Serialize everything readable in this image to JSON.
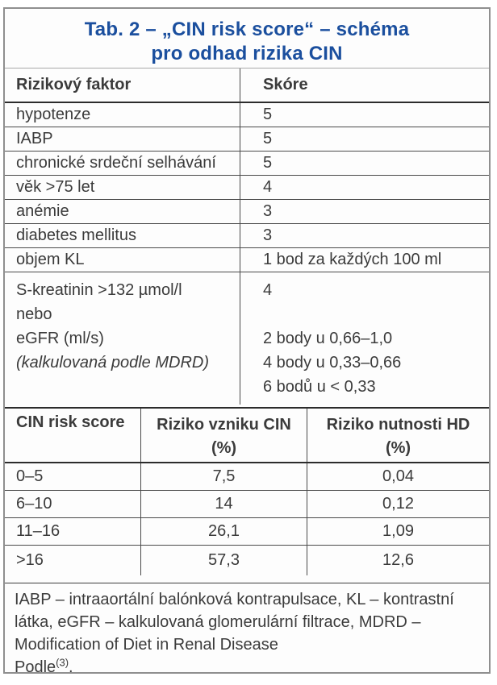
{
  "page": {
    "title_line1": "Tab. 2 – „CIN risk score“ – schéma",
    "title_line2": "pro odhad rizika CIN"
  },
  "colors": {
    "title_blue": "#1b4f9e",
    "text_gray": "#3b3b3b",
    "line_dark": "#2c2c2c",
    "line_mid": "#4a4a4a",
    "frame_gray": "#8f8f8f"
  },
  "risk_table": {
    "header": {
      "factor": "Rizikový faktor",
      "score": "Skóre"
    },
    "rows": [
      {
        "factor": "hypotenze",
        "score": "5"
      },
      {
        "factor": "IABP",
        "score": "5"
      },
      {
        "factor": "chronické srdeční selhávání",
        "score": "5"
      },
      {
        "factor": "věk >75 let",
        "score": "4"
      },
      {
        "factor": "anémie",
        "score": "3"
      },
      {
        "factor": "diabetes mellitus",
        "score": "3"
      },
      {
        "factor": "objem KL",
        "score": "1 bod za každých 100 ml"
      }
    ],
    "multi_row": {
      "factor_line1": "S-kreatinin >132 µmol/l",
      "factor_line2": "nebo",
      "factor_line3": "eGFR (ml/s)",
      "factor_line4": "(kalkulovaná podle MDRD)",
      "score_line1": "4",
      "score_line3": "2 body u 0,66–1,0",
      "score_line4": "4 body u 0,33–0,66",
      "score_line5": "6 bodů u < 0,33"
    }
  },
  "cin_table": {
    "header": {
      "col1": "CIN risk score",
      "col2_line1": "Riziko vzniku CIN",
      "col2_line2": "(%)",
      "col3_line1": "Riziko nutnosti HD",
      "col3_line2": "(%)"
    },
    "rows": [
      {
        "score": "0–5",
        "cin_risk": "7,5",
        "hd_risk": "0,04"
      },
      {
        "score": "6–10",
        "cin_risk": "14",
        "hd_risk": "0,12"
      },
      {
        "score": "11–16",
        "cin_risk": "26,1",
        "hd_risk": "1,09"
      },
      {
        "score": ">16",
        "cin_risk": "57,3",
        "hd_risk": "12,6"
      }
    ]
  },
  "footnote": {
    "line1": "IABP – intraaortální balónková kontrapulsace, KL – kontrastní",
    "line2": "látka, eGFR – kalkulovaná glomerulární filtrace, MDRD –",
    "line3": "Modification of Diet in Renal Disease",
    "line4_text": "Podle",
    "line4_sup": "(3)",
    "line4_end": "."
  }
}
